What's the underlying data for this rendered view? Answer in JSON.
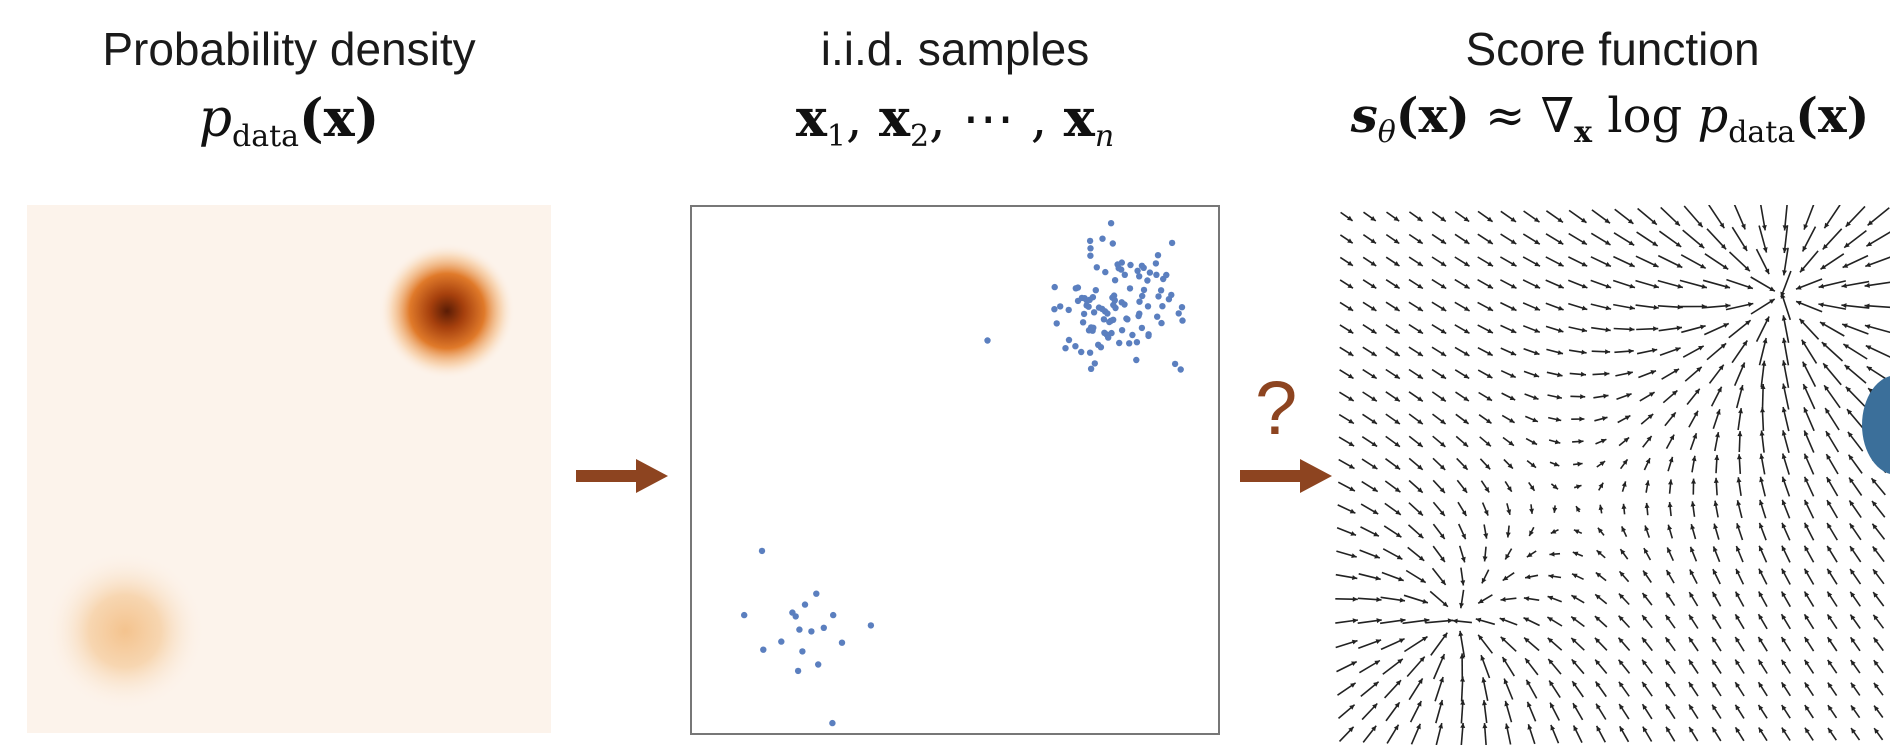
{
  "panels": {
    "density": {
      "heading": "Probability density",
      "formula": {
        "symbol": "p",
        "subscript": "data",
        "arg": "(x)"
      },
      "modes": [
        {
          "name": "upper-right mode",
          "color": "#b84a0f"
        },
        {
          "name": "lower-left mode",
          "color": "#f4c38e"
        }
      ],
      "background": "#fcf3eb"
    },
    "samples": {
      "heading": "i.i.d. samples",
      "formula": {
        "x1": "x",
        "s1": "1",
        "x2": "x",
        "s2": "2",
        "dots": ", ⋯ , ",
        "xn": "x",
        "sn": "n"
      },
      "point_color": "#5b7fbf"
    },
    "score": {
      "heading": "Score function",
      "formula": {
        "s": "s",
        "s_sub": "θ",
        "s_arg": "(x)",
        "approx": " ≈ ∇",
        "nabla_sub": "x",
        "log": " log ",
        "p": "p",
        "p_sub": "data",
        "p_arg": "(x)"
      },
      "arrow_color": "#222222"
    }
  },
  "transition": {
    "question": "?",
    "arrow_color": "#8d4420"
  }
}
